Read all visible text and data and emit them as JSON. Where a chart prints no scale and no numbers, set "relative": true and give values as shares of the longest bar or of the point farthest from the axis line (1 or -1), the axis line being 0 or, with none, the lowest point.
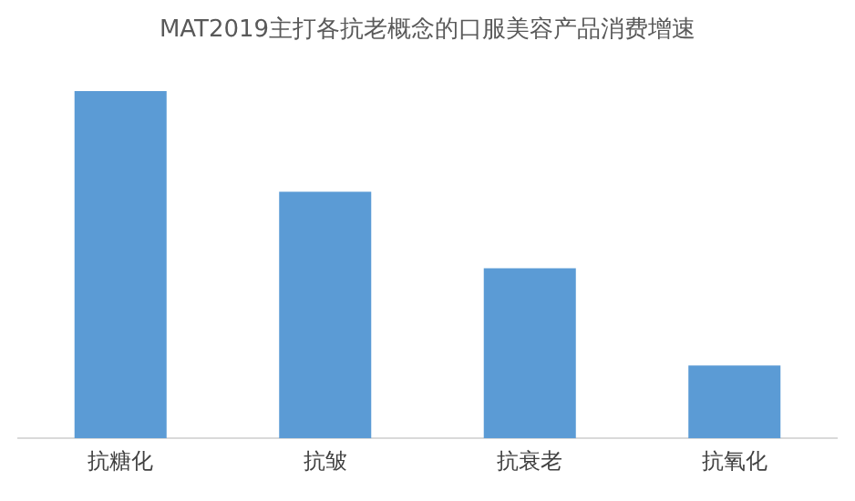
{
  "chart_data": {
    "type": "bar",
    "title": "MAT2019主打各抗老概念的口服美容产品消费增速",
    "categories": [
      "抗糖化",
      "抗皱",
      "抗衰老",
      "抗氧化"
    ],
    "values": [
      1,
      0.71,
      0.49,
      0.21
    ],
    "color": "#5b9bd5",
    "relative": true,
    "grid": false,
    "legend": false
  }
}
